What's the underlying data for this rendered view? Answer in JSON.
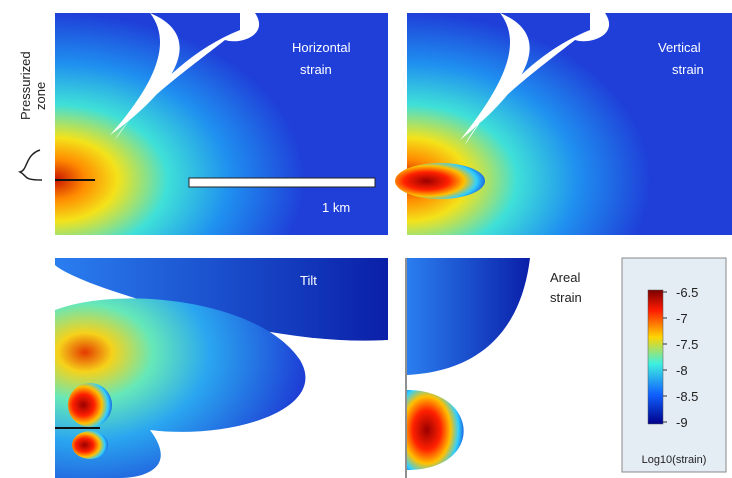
{
  "side_label": [
    "Pressurized",
    "zone"
  ],
  "panels": [
    {
      "lines": [
        "Horizontal",
        "strain"
      ]
    },
    {
      "lines": [
        "Vertical",
        "strain"
      ]
    },
    {
      "lines": [
        "Tilt"
      ]
    },
    {
      "lines": [
        "Areal",
        "strain"
      ]
    }
  ],
  "scale_bar": "1 km",
  "colorbar": {
    "title": "Log10(strain)",
    "lim": [
      -9,
      -6.5
    ],
    "ticks": [
      -6.5,
      -7,
      -7.5,
      -8,
      -8.5,
      -9
    ]
  }
}
